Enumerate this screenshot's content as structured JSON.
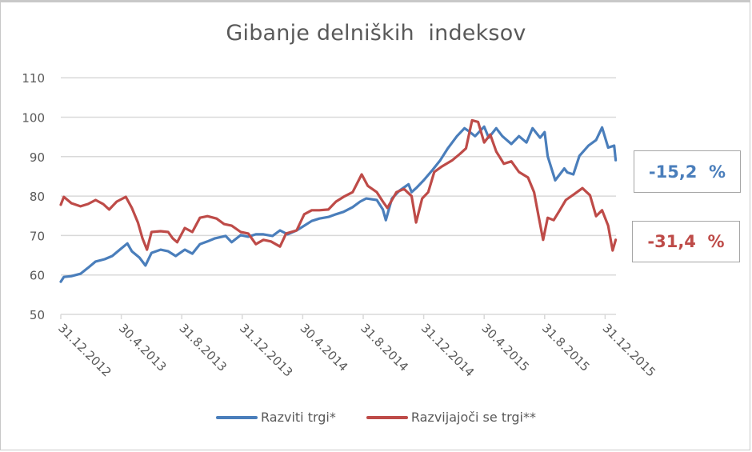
{
  "chart_data": {
    "type": "line",
    "title": "Gibanje delniških  indeksov",
    "xlabel": "",
    "ylabel": "",
    "ylim": [
      50,
      110
    ],
    "yticks": [
      50,
      60,
      70,
      80,
      90,
      100,
      110
    ],
    "grid": "horizontal",
    "x_unit": "months since 31.12.2012",
    "xticks": [
      {
        "label": "31.12.2012",
        "pos": 0
      },
      {
        "label": "30.4.2013",
        "pos": 4
      },
      {
        "label": "31.8.2013",
        "pos": 8
      },
      {
        "label": "31.12.2013",
        "pos": 12
      },
      {
        "label": "30.4.2014",
        "pos": 16
      },
      {
        "label": "31.8.2014",
        "pos": 20
      },
      {
        "label": "31.12.2014",
        "pos": 24
      },
      {
        "label": "30.4.2015",
        "pos": 28
      },
      {
        "label": "31.8.2015",
        "pos": 32
      },
      {
        "label": "31.12.2015",
        "pos": 36
      }
    ],
    "xlim": [
      0,
      36.7
    ],
    "legend_position": "bottom",
    "series": [
      {
        "name": "Razviti trgi*",
        "color": "#4a7ebb",
        "x": [
          0,
          0.2,
          0.7,
          1.3,
          1.8,
          2.3,
          2.9,
          3.4,
          3.9,
          4.4,
          4.7,
          5.2,
          5.6,
          6.0,
          6.6,
          7.1,
          7.6,
          8.2,
          8.7,
          9.2,
          9.7,
          10.2,
          10.9,
          11.3,
          11.9,
          12.4,
          12.9,
          13.4,
          14.0,
          14.5,
          15.0,
          15.6,
          16.1,
          16.6,
          17.1,
          17.7,
          18.2,
          18.7,
          19.3,
          19.8,
          20.2,
          20.9,
          21.3,
          21.5,
          21.9,
          22.4,
          23.0,
          23.2,
          23.5,
          24.0,
          24.6,
          25.1,
          25.6,
          26.2,
          26.7,
          27.0,
          27.4,
          28.0,
          28.3,
          28.8,
          29.2,
          29.8,
          30.3,
          30.8,
          31.2,
          31.7,
          32.0,
          32.2,
          32.7,
          33.3,
          33.5,
          33.9,
          34.3,
          34.9,
          35.4,
          35.8,
          36.2,
          36.6,
          36.7
        ],
        "values": [
          58.3,
          59.5,
          59.7,
          60.3,
          61.8,
          63.4,
          64.0,
          64.8,
          66.4,
          68.0,
          66.0,
          64.4,
          62.4,
          65.6,
          66.4,
          66.0,
          64.8,
          66.4,
          65.4,
          67.8,
          68.5,
          69.3,
          69.9,
          68.3,
          70.1,
          69.7,
          70.3,
          70.3,
          69.9,
          71.3,
          70.3,
          71.3,
          72.5,
          73.7,
          74.3,
          74.7,
          75.4,
          76.0,
          77.2,
          78.6,
          79.4,
          79.0,
          76.6,
          73.9,
          79.4,
          81.4,
          83.0,
          81.0,
          82.0,
          84.0,
          86.7,
          89.1,
          92.1,
          95.2,
          97.2,
          96.4,
          95.2,
          97.6,
          94.8,
          97.2,
          95.2,
          93.2,
          95.2,
          93.6,
          97.2,
          94.8,
          96.2,
          90.1,
          84.0,
          87.0,
          86.0,
          85.5,
          90.2,
          92.8,
          94.2,
          97.4,
          92.3,
          92.8,
          89.1
        ],
        "end_annotation": "-15,2  %"
      },
      {
        "name": "Razvijajoči se trgi**",
        "color": "#be4b48",
        "x": [
          0,
          0.2,
          0.7,
          1.3,
          1.8,
          2.3,
          2.8,
          3.2,
          3.7,
          4.3,
          4.7,
          5.1,
          5.4,
          5.7,
          6.0,
          6.6,
          7.1,
          7.4,
          7.7,
          8.2,
          8.7,
          9.2,
          9.7,
          10.3,
          10.8,
          11.3,
          11.9,
          12.4,
          12.9,
          13.4,
          13.9,
          14.5,
          14.9,
          15.6,
          16.1,
          16.6,
          17.1,
          17.7,
          18.2,
          18.7,
          19.3,
          19.9,
          20.3,
          20.9,
          21.3,
          21.6,
          22.2,
          22.7,
          23.2,
          23.5,
          23.9,
          24.3,
          24.7,
          25.2,
          25.9,
          26.4,
          26.8,
          27.2,
          27.6,
          28.0,
          28.4,
          28.8,
          29.3,
          29.8,
          30.3,
          30.9,
          31.3,
          31.6,
          31.9,
          32.2,
          32.6,
          33.0,
          33.4,
          34.0,
          34.5,
          35.0,
          35.4,
          35.8,
          36.2,
          36.5,
          36.7
        ],
        "values": [
          77.8,
          79.8,
          78.2,
          77.4,
          78.0,
          79.0,
          78.0,
          76.6,
          78.6,
          79.8,
          77.0,
          73.3,
          69.3,
          66.4,
          70.9,
          71.1,
          70.9,
          69.3,
          68.3,
          71.9,
          70.9,
          74.5,
          74.9,
          74.3,
          72.9,
          72.5,
          70.9,
          70.5,
          67.8,
          68.9,
          68.5,
          67.2,
          70.5,
          71.3,
          75.4,
          76.4,
          76.4,
          76.6,
          78.6,
          79.8,
          81.0,
          85.5,
          82.6,
          81.0,
          78.6,
          77.0,
          81.0,
          81.8,
          80.0,
          73.3,
          79.4,
          81.0,
          86.1,
          87.5,
          89.1,
          90.7,
          92.1,
          99.2,
          98.8,
          93.6,
          95.6,
          91.3,
          88.2,
          88.8,
          86.1,
          84.7,
          81.0,
          74.9,
          68.9,
          74.5,
          73.9,
          76.4,
          79.0,
          80.6,
          82.0,
          80.2,
          74.9,
          76.4,
          72.5,
          66.2,
          68.9
        ],
        "end_annotation": "-31,4  %"
      }
    ]
  },
  "annotations": [
    {
      "text": "-15,2  %",
      "color": "#4a7ebb"
    },
    {
      "text": "-31,4  %",
      "color": "#be4b48"
    }
  ],
  "legend": [
    {
      "label": "Razviti trgi*",
      "color": "#4a7ebb"
    },
    {
      "label": "Razvijajoči se trgi**",
      "color": "#be4b48"
    }
  ]
}
